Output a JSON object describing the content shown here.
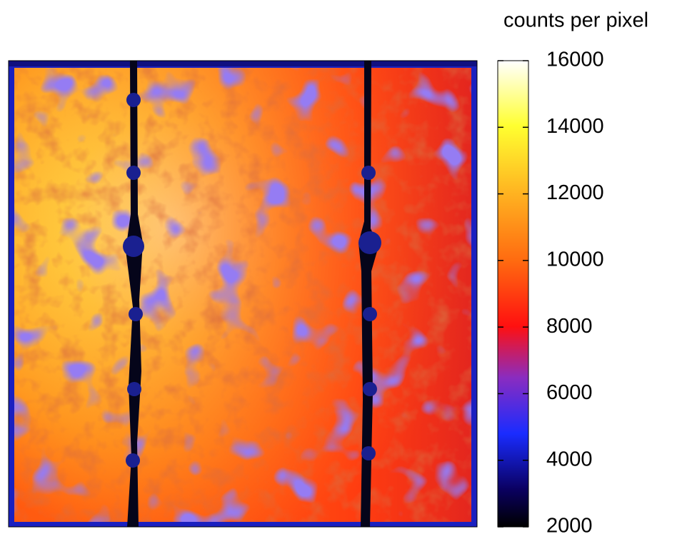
{
  "chart_data": {
    "type": "colorbar-image",
    "colorbar_label": "counts per pixel",
    "clim": [
      2000,
      16000
    ],
    "cticks": [
      2000,
      4000,
      6000,
      8000,
      10000,
      12000,
      14000,
      16000
    ]
  }
}
